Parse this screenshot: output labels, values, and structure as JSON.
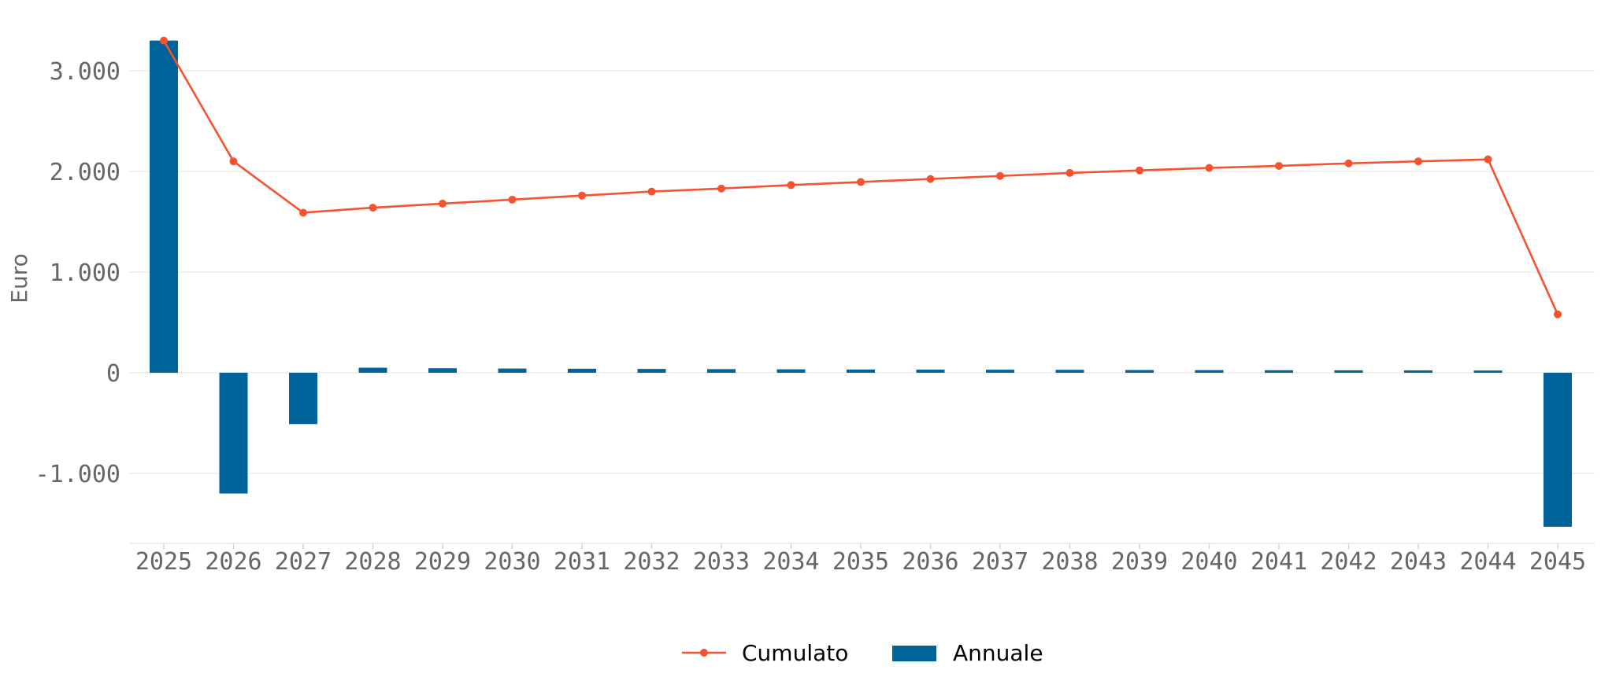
{
  "chart_data": {
    "type": "bar",
    "categories": [
      "2025",
      "2026",
      "2027",
      "2028",
      "2029",
      "2030",
      "2031",
      "2032",
      "2033",
      "2034",
      "2035",
      "2036",
      "2037",
      "2038",
      "2039",
      "2040",
      "2041",
      "2042",
      "2043",
      "2044",
      "2045"
    ],
    "series": [
      {
        "name": "Annuale",
        "type": "bar",
        "color": "#00639a",
        "values": [
          3300,
          -1200,
          -510,
          50,
          45,
          42,
          40,
          38,
          36,
          34,
          32,
          31,
          30,
          29,
          27,
          26,
          25,
          24,
          23,
          22,
          -1530
        ]
      },
      {
        "name": "Cumulato",
        "type": "line",
        "color": "#f5532f",
        "values": [
          3300,
          2100,
          1590,
          1640,
          1680,
          1720,
          1760,
          1800,
          1830,
          1865,
          1895,
          1925,
          1955,
          1985,
          2010,
          2035,
          2055,
          2080,
          2100,
          2120,
          580
        ]
      }
    ],
    "ylabel": "Euro",
    "xlabel": "",
    "ylim": [
      -1700,
      3400
    ],
    "yticks": [
      -1000,
      0,
      1000,
      2000,
      3000
    ],
    "ytick_labels": [
      "-1.000",
      "0",
      "1.000",
      "2.000",
      "3.000"
    ],
    "grid": true,
    "legend_position": "bottom-center",
    "legend": [
      "Cumulato",
      "Annuale"
    ]
  }
}
